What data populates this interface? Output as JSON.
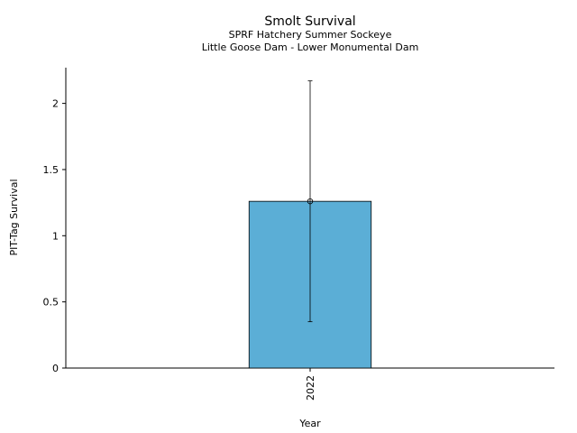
{
  "chart_data": {
    "type": "bar",
    "title": "Smolt Survival",
    "subtitle_lines": [
      "SPRF Hatchery Summer Sockeye",
      "Little Goose Dam - Lower Monumental Dam"
    ],
    "xlabel": "Year",
    "ylabel": "PIT-Tag Survival",
    "categories": [
      "2022"
    ],
    "values": [
      1.26
    ],
    "error_low": [
      0.35
    ],
    "error_high": [
      2.17
    ],
    "ylim": [
      0,
      2.27
    ],
    "yticks": [
      0,
      0.5,
      1,
      1.5,
      2
    ],
    "ytick_labels": [
      "0",
      "0.5",
      "1",
      "1.5",
      "2"
    ],
    "grid": false,
    "bar_color": "#5BAED6"
  }
}
